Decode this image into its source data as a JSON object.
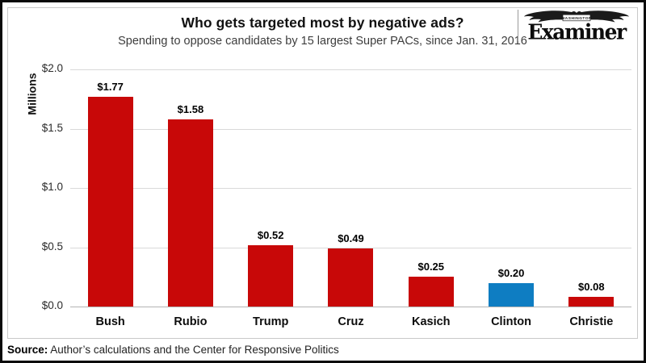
{
  "header": {
    "title": "Who gets targeted most by negative ads?",
    "subtitle": "Spending to oppose candidates by 15 largest Super PACs, since Jan. 31, 2016"
  },
  "logo": {
    "masthead_small": "WASHINGTON",
    "masthead": "Examiner"
  },
  "chart_data": {
    "type": "bar",
    "title": "Who gets targeted most by negative ads?",
    "subtitle": "Spending to oppose candidates by 15 largest Super PACs, since Jan. 31, 2016",
    "xlabel": "",
    "ylabel": "Millions",
    "ylim": [
      0,
      2.0
    ],
    "yticks": [
      2.0,
      1.5,
      1.0,
      0.5,
      0.0
    ],
    "ytick_labels": [
      "$2.0",
      "$1.5",
      "$1.0",
      "$0.5",
      "$0.0"
    ],
    "grid": true,
    "legend": false,
    "categories": [
      "Bush",
      "Rubio",
      "Trump",
      "Cruz",
      "Kasich",
      "Clinton",
      "Christie"
    ],
    "values": [
      1.77,
      1.58,
      0.52,
      0.49,
      0.25,
      0.2,
      0.08
    ],
    "value_labels": [
      "$1.77",
      "$1.58",
      "$0.52",
      "$0.49",
      "$0.25",
      "$0.20",
      "$0.08"
    ],
    "bar_colors": [
      "#c80808",
      "#c80808",
      "#c80808",
      "#c80808",
      "#c80808",
      "#0e7dc2",
      "#c80808"
    ],
    "colors": {
      "bar_red": "#c80808",
      "bar_blue": "#0e7dc2",
      "gridline": "#d9d9d9",
      "baseline": "#b3b3b3"
    }
  },
  "footer": {
    "source_label": "Source:",
    "source_text": "Author’s calculations and the Center for Responsive Politics"
  }
}
